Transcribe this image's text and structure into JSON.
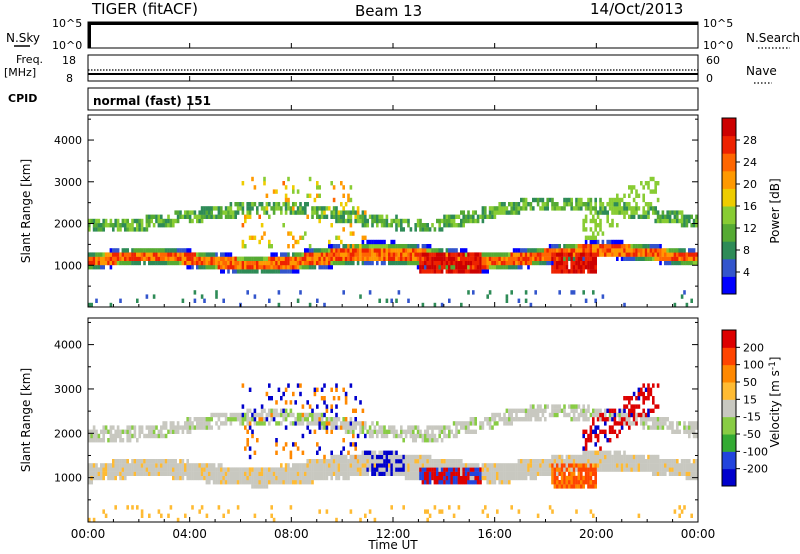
{
  "header": {
    "title": "TIGER (fitACF)",
    "beam": "Beam 13",
    "date": "14/Oct/2013"
  },
  "top_panels": {
    "nsky_label": "N.Sky",
    "nsky_ticks": [
      "10^5",
      "10^0"
    ],
    "nsearch_label": "N.Search",
    "nsearch_ticks": [
      "10^5",
      "10^0"
    ],
    "freq_label_1": "Freq.",
    "freq_label_2": "[MHz]",
    "freq_ticks": [
      "18",
      "8"
    ],
    "nave_label": "Nave",
    "nave_ticks": [
      "60",
      "0"
    ],
    "cpid_label": "CPID",
    "cpid_text": "normal (fast) 151"
  },
  "chart_data": [
    {
      "type": "heatmap",
      "name": "power",
      "ylabel": "Slant Range [km]",
      "ylim": [
        0,
        4600
      ],
      "yticks": [
        "1000",
        "2000",
        "3000",
        "4000"
      ],
      "xlim": [
        0,
        24
      ],
      "colorbar_label": "Power [dB]",
      "colorbar_ticks": [
        "28",
        "24",
        "20",
        "16",
        "12",
        "8",
        "4"
      ],
      "colors": [
        "#0000ff",
        "#3355cc",
        "#2e8b57",
        "#55aa33",
        "#88cc33",
        "#eecc00",
        "#ff9900",
        "#ff6600",
        "#ee2200",
        "#cc0000"
      ]
    },
    {
      "type": "heatmap",
      "name": "velocity",
      "ylabel": "Slant Range [km]",
      "ylim": [
        0,
        4600
      ],
      "yticks": [
        "1000",
        "2000",
        "3000",
        "4000"
      ],
      "xlim": [
        0,
        24
      ],
      "xlabel": "Time UT",
      "xticks": [
        "00:00",
        "04:00",
        "08:00",
        "12:00",
        "16:00",
        "20:00",
        "00:00"
      ],
      "colorbar_label": "Velocity [m s",
      "colorbar_label_sup": "-1",
      "colorbar_label_end": "]",
      "colorbar_ticks": [
        "200",
        "100",
        "50",
        "15",
        "-15",
        "-50",
        "-100",
        "-200"
      ],
      "colors": [
        "#0000cc",
        "#2244dd",
        "#33aa33",
        "#88cc44",
        "#c8c8c0",
        "#ffbb33",
        "#ff8800",
        "#ff4400",
        "#dd0000"
      ]
    }
  ]
}
